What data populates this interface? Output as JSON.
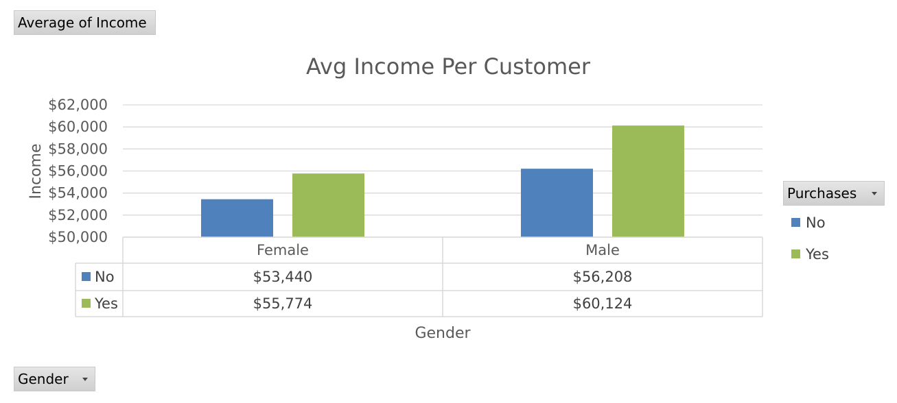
{
  "pivot": {
    "value_field": "Average of Income",
    "axis_field": "Gender",
    "legend_field": "Purchases"
  },
  "colors": {
    "No": "#4f81bd",
    "Yes": "#9bbb59",
    "grid": "#d9d9d9",
    "table": "#d9d9d9"
  },
  "legend": [
    {
      "label": "No",
      "color": "#4f81bd"
    },
    {
      "label": "Yes",
      "color": "#9bbb59"
    }
  ],
  "chart_data": {
    "type": "bar",
    "title": "Avg Income Per Customer",
    "xlabel": "Gender",
    "ylabel": "Income",
    "categories": [
      "Female",
      "Male"
    ],
    "series": [
      {
        "name": "No",
        "values": [
          53440,
          56208
        ],
        "labels": [
          "$53,440",
          "$56,208"
        ]
      },
      {
        "name": "Yes",
        "values": [
          55774,
          60124
        ],
        "labels": [
          "$55,774",
          "$60,124"
        ]
      }
    ],
    "ylim": [
      50000,
      62000
    ],
    "yticks": [
      50000,
      52000,
      54000,
      56000,
      58000,
      60000,
      62000
    ],
    "ytick_labels": [
      "$50,000",
      "$52,000",
      "$54,000",
      "$56,000",
      "$58,000",
      "$60,000",
      "$62,000"
    ],
    "grid": true,
    "legend_position": "right",
    "data_table": true
  }
}
